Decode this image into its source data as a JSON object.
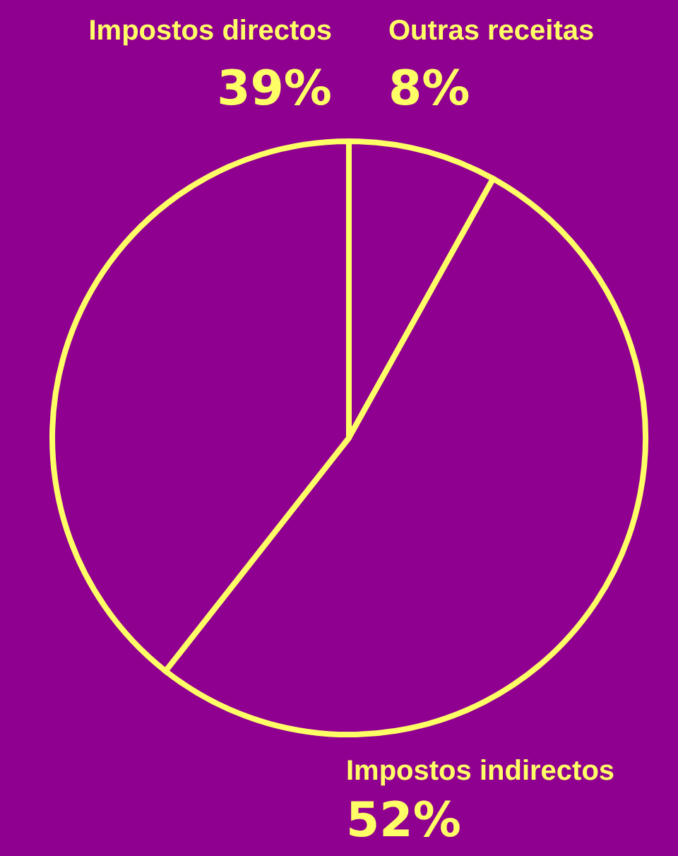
{
  "chart_data": {
    "type": "pie",
    "categories": [
      "Outras receitas",
      "Impostos indirectos",
      "Impostos directos"
    ],
    "values": [
      8,
      52,
      39
    ],
    "value_labels": [
      "8%",
      "52%",
      "39%"
    ],
    "colors": [
      "#900090",
      "#900090",
      "#900090"
    ]
  }
}
